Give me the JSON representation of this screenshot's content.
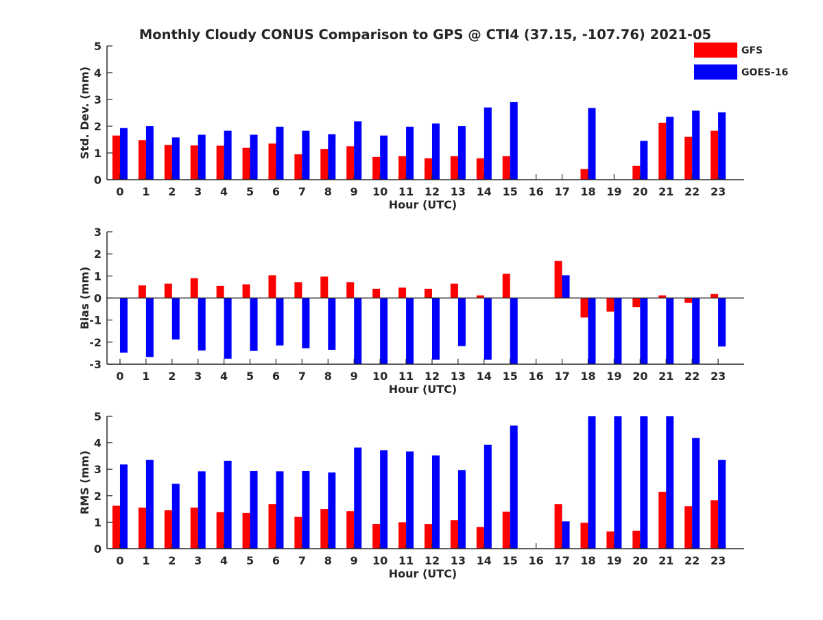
{
  "figure_title": "Monthly Cloudy CONUS Comparison to GPS @ CTI4 (37.15, -107.76) 2021-05",
  "colors": {
    "gfs": "#ff0000",
    "goes": "#0000ff",
    "axis": "#262626"
  },
  "chart_data": [
    {
      "id": "stddev",
      "type": "bar",
      "title": "Monthly Cloudy CONUS Comparison to GPS @ CTI4 (37.15, -107.76) 2021-05",
      "xlabel": "Hour (UTC)",
      "ylabel": "Std. Dev. (mm)",
      "ylim": [
        0,
        5
      ],
      "yticks": [
        0,
        1,
        2,
        3,
        4,
        5
      ],
      "legend": "top-right",
      "categories": [
        "0",
        "1",
        "2",
        "3",
        "4",
        "5",
        "6",
        "7",
        "8",
        "9",
        "10",
        "11",
        "12",
        "13",
        "14",
        "15",
        "16",
        "17",
        "18",
        "19",
        "20",
        "21",
        "22",
        "23"
      ],
      "series": [
        {
          "name": "GFS",
          "color": "#ff0000",
          "values": [
            1.65,
            1.48,
            1.3,
            1.28,
            1.27,
            1.19,
            1.35,
            0.95,
            1.15,
            1.25,
            0.85,
            0.88,
            0.8,
            0.88,
            0.8,
            0.88,
            null,
            null,
            0.4,
            null,
            0.52,
            2.13,
            1.6,
            1.83
          ]
        },
        {
          "name": "GOES-16",
          "color": "#0000ff",
          "values": [
            1.93,
            2.0,
            1.58,
            1.68,
            1.83,
            1.68,
            1.98,
            1.83,
            1.7,
            2.18,
            1.65,
            1.98,
            2.1,
            2.0,
            2.7,
            2.9,
            null,
            null,
            2.68,
            null,
            1.45,
            2.35,
            2.58,
            2.52
          ]
        }
      ]
    },
    {
      "id": "bias",
      "type": "bar",
      "xlabel": "Hour (UTC)",
      "ylabel": "Bias (mm)",
      "ylim": [
        -3,
        3
      ],
      "yticks": [
        -3,
        -2,
        -1,
        0,
        1,
        2,
        3
      ],
      "categories": [
        "0",
        "1",
        "2",
        "3",
        "4",
        "5",
        "6",
        "7",
        "8",
        "9",
        "10",
        "11",
        "12",
        "13",
        "14",
        "15",
        "16",
        "17",
        "18",
        "19",
        "20",
        "21",
        "22",
        "23"
      ],
      "series": [
        {
          "name": "GFS",
          "color": "#ff0000",
          "values": [
            0.0,
            0.57,
            0.65,
            0.9,
            0.55,
            0.62,
            1.03,
            0.72,
            0.97,
            0.72,
            0.42,
            0.47,
            0.42,
            0.65,
            0.12,
            1.1,
            null,
            1.68,
            -0.88,
            -0.62,
            -0.42,
            0.12,
            -0.22,
            0.18
          ]
        },
        {
          "name": "GOES-16",
          "color": "#0000ff",
          "values": [
            -2.48,
            -2.68,
            -1.88,
            -2.38,
            -2.75,
            -2.4,
            -2.15,
            -2.28,
            -2.35,
            -3.0,
            -3.0,
            -3.0,
            -2.8,
            -2.18,
            -2.8,
            -3.0,
            null,
            1.03,
            -3.0,
            -3.0,
            -3.0,
            -3.0,
            -3.0,
            -2.2
          ]
        }
      ]
    },
    {
      "id": "rms",
      "type": "bar",
      "xlabel": "Hour (UTC)",
      "ylabel": "RMS (mm)",
      "ylim": [
        0,
        5
      ],
      "yticks": [
        0,
        1,
        2,
        3,
        4,
        5
      ],
      "categories": [
        "0",
        "1",
        "2",
        "3",
        "4",
        "5",
        "6",
        "7",
        "8",
        "9",
        "10",
        "11",
        "12",
        "13",
        "14",
        "15",
        "16",
        "17",
        "18",
        "19",
        "20",
        "21",
        "22",
        "23"
      ],
      "series": [
        {
          "name": "GFS",
          "color": "#ff0000",
          "values": [
            1.62,
            1.55,
            1.45,
            1.55,
            1.38,
            1.35,
            1.68,
            1.2,
            1.5,
            1.42,
            0.93,
            1.0,
            0.93,
            1.08,
            0.82,
            1.4,
            null,
            1.68,
            0.98,
            0.65,
            0.68,
            2.15,
            1.6,
            1.83
          ]
        },
        {
          "name": "GOES-16",
          "color": "#0000ff",
          "values": [
            3.18,
            3.35,
            2.45,
            2.92,
            3.32,
            2.93,
            2.92,
            2.93,
            2.88,
            3.82,
            3.72,
            3.67,
            3.52,
            2.97,
            3.92,
            4.65,
            null,
            1.03,
            5.0,
            5.0,
            5.0,
            5.0,
            4.18,
            3.35
          ]
        }
      ]
    }
  ]
}
